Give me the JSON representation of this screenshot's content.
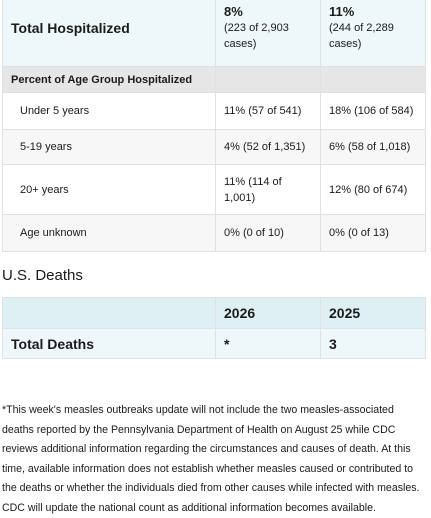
{
  "hospitalized": {
    "total_label": "Total Hospitalized",
    "total": [
      {
        "pct": "8%",
        "detail": "(223 of 2,903 cases)"
      },
      {
        "pct": "11%",
        "detail": "(244 of 2,289 cases)"
      }
    ],
    "section": "Percent of Age Group Hospitalized",
    "rows": [
      [
        "Under 5 years",
        "11% (57 of 541)",
        "18% (106 of 584)"
      ],
      [
        "5-19 years",
        "4% (52 of 1,351)",
        "6% (58 of 1,018)"
      ],
      [
        "20+ years",
        "11% (114 of 1,001)",
        "12% (80 of 674)"
      ],
      [
        "Age unknown",
        "0% (0 of 10)",
        "0% (0 of 13)"
      ]
    ]
  },
  "deaths": {
    "heading": "U.S. Deaths",
    "header": [
      "2026",
      "2025"
    ],
    "row": [
      "Total Deaths",
      "*",
      "3"
    ]
  },
  "footnote": "*This week's measles outbreaks update will not include the two measles-associated deaths reported by the Pennsylvania Department of Health on August 25 while CDC reviews additional information regarding the circumstances and causes of death. At this time, available information does not establish whether measles caused or contributed to the deaths or whether the individuals died from other causes while infected with measles. CDC will update the national count as additional information becomes available."
}
